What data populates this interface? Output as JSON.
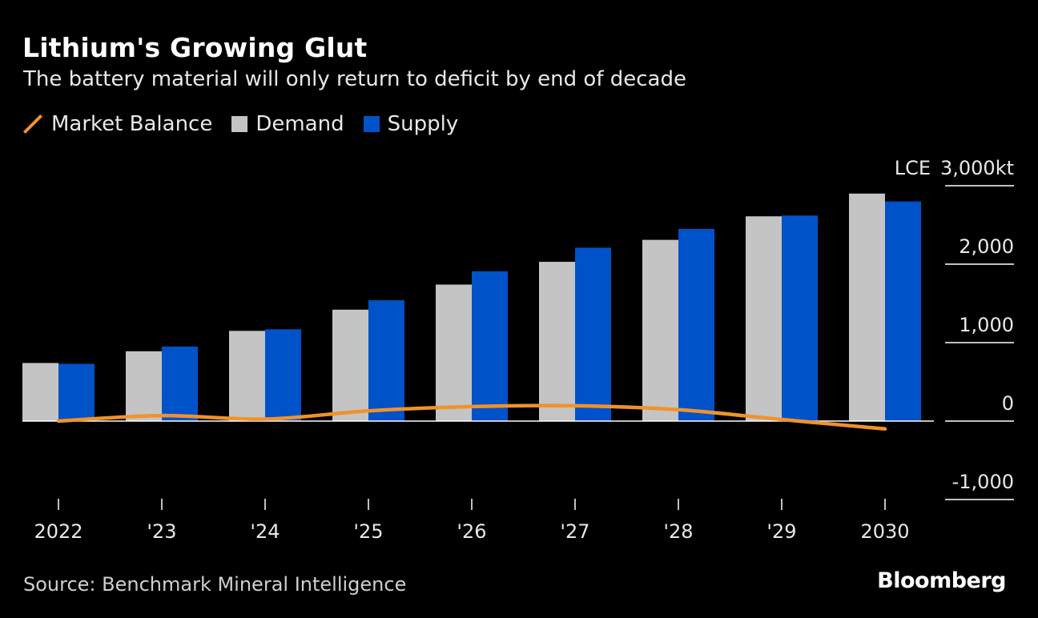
{
  "header": {
    "title": "Lithium's Growing Glut",
    "subtitle": "The battery material will only return to deficit by end of decade"
  },
  "legend": [
    {
      "label": "Market Balance",
      "kind": "line",
      "color": "#f0922b"
    },
    {
      "label": "Demand",
      "kind": "box",
      "color": "#c4c4c4"
    },
    {
      "label": "Supply",
      "kind": "box",
      "color": "#0052c8"
    }
  ],
  "footer": {
    "source": "Source: Benchmark Mineral Intelligence",
    "brand": "Bloomberg"
  },
  "chart_data": {
    "type": "bar",
    "categories": [
      "2022",
      "'23",
      "'24",
      "'25",
      "'26",
      "'27",
      "'28",
      "'29",
      "2030"
    ],
    "series": [
      {
        "name": "Demand",
        "type": "bar",
        "color": "#c4c4c4",
        "values": [
          740,
          890,
          1150,
          1420,
          1740,
          2030,
          2310,
          2610,
          2900
        ]
      },
      {
        "name": "Supply",
        "type": "bar",
        "color": "#0052c8",
        "values": [
          730,
          950,
          1170,
          1540,
          1910,
          2210,
          2450,
          2620,
          2800
        ]
      },
      {
        "name": "Market Balance",
        "type": "line",
        "color": "#f0922b",
        "values": [
          0,
          70,
          25,
          130,
          185,
          195,
          145,
          20,
          -100
        ]
      }
    ],
    "y_ticks": [
      {
        "value": 3000,
        "label": "3,000kt",
        "prefix": "LCE"
      },
      {
        "value": 2000,
        "label": "2,000"
      },
      {
        "value": 1000,
        "label": "1,000"
      },
      {
        "value": 0,
        "label": "0"
      },
      {
        "value": -1000,
        "label": "-1,000"
      }
    ],
    "ylim": [
      -1000,
      3000
    ],
    "y_axis_position": "right",
    "legend_position": "top-left",
    "grid": false
  }
}
